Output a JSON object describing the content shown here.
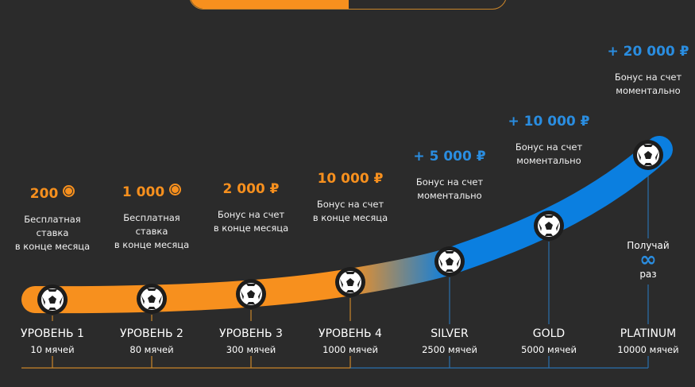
{
  "colors": {
    "orange": "#f7901e",
    "blue": "#0b7fe0",
    "background": "#2b2b2b"
  },
  "toggle": {
    "active_side": "left"
  },
  "levels": [
    {
      "name": "УРОВЕНЬ 1",
      "balls": "10 мячей",
      "amount": "200",
      "amount_icon": "coin-icon",
      "desc": [
        "Бесплатная",
        "ставка",
        "в конце месяца"
      ],
      "color": "orange"
    },
    {
      "name": "УРОВЕНЬ 2",
      "balls": "80 мячей",
      "amount": "1 000",
      "amount_icon": "coin-icon",
      "desc": [
        "Бесплатная",
        "ставка",
        "в конце месяца"
      ],
      "color": "orange"
    },
    {
      "name": "УРОВЕНЬ 3",
      "balls": "300 мячей",
      "amount": "2 000 ₽",
      "desc": [
        "Бонус на счет",
        "в конце месяца"
      ],
      "color": "orange"
    },
    {
      "name": "УРОВЕНЬ 4",
      "balls": "1000 мячей",
      "amount": "10 000 ₽",
      "desc": [
        "Бонус на счет",
        "в конце месяца"
      ],
      "color": "orange"
    },
    {
      "name": "SILVER",
      "balls": "2500 мячей",
      "amount": "+ 5 000 ₽",
      "desc": [
        "Бонус на счет",
        "моментально"
      ],
      "color": "blue"
    },
    {
      "name": "GOLD",
      "balls": "5000 мячей",
      "amount": "+ 10 000 ₽",
      "desc": [
        "Бонус на счет",
        "моментально"
      ],
      "color": "blue"
    },
    {
      "name": "PLATINUM",
      "balls": "10000 мячей",
      "amount": "+ 20 000 ₽",
      "desc": [
        "Бонус на счет",
        "моментально"
      ],
      "color": "blue"
    }
  ],
  "unlimited": {
    "top": "Получай",
    "symbol": "∞",
    "bottom": "раз"
  }
}
